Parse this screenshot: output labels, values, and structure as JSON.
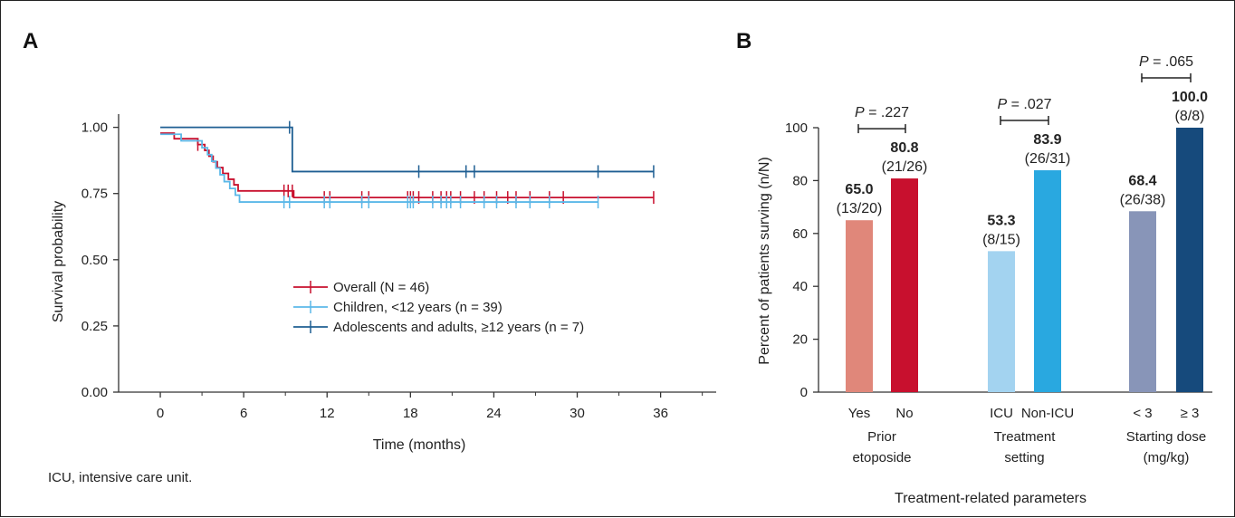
{
  "colors": {
    "overall": "#c8102e",
    "children": "#5bb8e8",
    "adults": "#1f5f93"
  },
  "caption": "ICU, intensive care unit.",
  "chart_data": [
    {
      "panel": "A",
      "type": "line",
      "xlabel": "Time (months)",
      "ylabel": "Survival probability",
      "xlim": [
        -3,
        40
      ],
      "ylim": [
        0,
        1.05
      ],
      "xticks": [
        "0",
        "6",
        "12",
        "18",
        "24",
        "30",
        "36"
      ],
      "yticks": [
        "0.00",
        "0.25",
        "0.50",
        "0.75",
        "1.00"
      ],
      "grid": false,
      "legend_position": "center-right",
      "series": [
        {
          "name": "Overall (N = 46)",
          "color": "#c8102e",
          "steps": [
            [
              0,
              0.978
            ],
            [
              1,
              0.957
            ],
            [
              2.7,
              0.935
            ],
            [
              3.2,
              0.913
            ],
            [
              3.5,
              0.891
            ],
            [
              3.8,
              0.87
            ],
            [
              4.1,
              0.848
            ],
            [
              4.5,
              0.826
            ],
            [
              4.9,
              0.804
            ],
            [
              5.3,
              0.783
            ],
            [
              5.6,
              0.76
            ],
            [
              9.6,
              0.735
            ],
            [
              35.5,
              0.735
            ]
          ],
          "censor_times": [
            2.7,
            8.9,
            9.2,
            9.5,
            11.8,
            12.2,
            14.5,
            15.0,
            17.8,
            18.0,
            18.2,
            18.6,
            19.6,
            20.2,
            20.6,
            20.9,
            21.6,
            22.6,
            23.3,
            24.2,
            25.0,
            25.6,
            26.6,
            28.0,
            29.0,
            35.5
          ]
        },
        {
          "name": "Children, <12 years (n = 39)",
          "color": "#5bb8e8",
          "steps": [
            [
              0,
              0.974
            ],
            [
              1.5,
              0.949
            ],
            [
              3,
              0.923
            ],
            [
              3.4,
              0.897
            ],
            [
              3.7,
              0.872
            ],
            [
              4,
              0.846
            ],
            [
              4.3,
              0.821
            ],
            [
              4.6,
              0.795
            ],
            [
              5,
              0.769
            ],
            [
              5.4,
              0.744
            ],
            [
              5.7,
              0.718
            ],
            [
              31.5,
              0.718
            ]
          ],
          "censor_times": [
            8.9,
            9.3,
            11.8,
            12.2,
            14.5,
            15.0,
            17.8,
            18.0,
            18.2,
            19.6,
            20.2,
            20.6,
            20.9,
            21.6,
            23.3,
            24.2,
            25.6,
            26.6,
            28.0,
            31.5
          ]
        },
        {
          "name": "Adolescents and adults, ≥12 years (n = 7)",
          "color": "#1f5f93",
          "steps": [
            [
              0,
              1.0
            ],
            [
              9.5,
              0.833
            ],
            [
              35.5,
              0.833
            ]
          ],
          "censor_times": [
            9.3,
            18.6,
            22.0,
            22.6,
            31.5,
            35.5
          ]
        }
      ]
    },
    {
      "panel": "B",
      "type": "bar",
      "ylabel": "Percent of patients surving (n/N)",
      "xlabel": "Treatment-related parameters",
      "ylim": [
        0,
        100
      ],
      "yticks": [
        "0",
        "20",
        "40",
        "60",
        "80",
        "100"
      ],
      "groups": [
        {
          "label_lines": [
            "Prior",
            "etoposide"
          ],
          "p_value": ".227",
          "bars": [
            {
              "category": "Yes",
              "value": 65.0,
              "value_label": "65.0",
              "fraction": "(13/20)",
              "color": "#e0877a"
            },
            {
              "category": "No",
              "value": 80.8,
              "value_label": "80.8",
              "fraction": "(21/26)",
              "color": "#c8102e"
            }
          ]
        },
        {
          "label_lines": [
            "Treatment",
            "setting"
          ],
          "p_value": ".027",
          "bars": [
            {
              "category": "ICU",
              "value": 53.3,
              "value_label": "53.3",
              "fraction": "(8/15)",
              "color": "#a3d3f0"
            },
            {
              "category": "Non-ICU",
              "value": 83.9,
              "value_label": "83.9",
              "fraction": "(26/31)",
              "color": "#29a8e0"
            }
          ]
        },
        {
          "label_lines": [
            "Starting dose",
            "(mg/kg)"
          ],
          "p_value": ".065",
          "bars": [
            {
              "category": "< 3",
              "value": 68.4,
              "value_label": "68.4",
              "fraction": "(26/38)",
              "color": "#8895b8"
            },
            {
              "category": "≥ 3",
              "value": 100.0,
              "value_label": "100.0",
              "fraction": "(8/8)",
              "color": "#164a7c"
            }
          ]
        }
      ]
    }
  ]
}
